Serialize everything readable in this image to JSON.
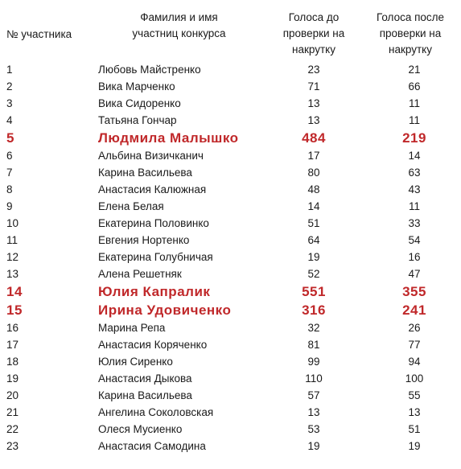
{
  "header": {
    "num_line1": "№ участника",
    "name_line1": "Фамилия и имя",
    "name_line2": "участниц конкурса",
    "before_line1": "Голоса до",
    "before_line2": "проверки на",
    "before_line3": "накрутку",
    "after_line1": "Голоса после",
    "after_line2": "проверки на",
    "after_line3": "накрутку"
  },
  "highlight_color": "#c0282a",
  "rows": [
    {
      "num": "1",
      "name": "Любовь Майстренко",
      "before": "23",
      "after": "21",
      "highlight": false
    },
    {
      "num": "2",
      "name": "Вика Марченко",
      "before": "71",
      "after": "66",
      "highlight": false
    },
    {
      "num": "3",
      "name": "Вика Сидоренко",
      "before": "13",
      "after": "11",
      "highlight": false
    },
    {
      "num": "4",
      "name": "Татьяна Гончар",
      "before": "13",
      "after": "11",
      "highlight": false
    },
    {
      "num": "5",
      "name": "Людмила Малышко",
      "before": "484",
      "after": "219",
      "highlight": true
    },
    {
      "num": "6",
      "name": "Альбина Визичканич",
      "before": "17",
      "after": "14",
      "highlight": false
    },
    {
      "num": "7",
      "name": "Карина Васильева",
      "before": "80",
      "after": "63",
      "highlight": false
    },
    {
      "num": "8",
      "name": "Анастасия Калюжная",
      "before": "48",
      "after": "43",
      "highlight": false
    },
    {
      "num": "9",
      "name": "Елена Белая",
      "before": "14",
      "after": "11",
      "highlight": false
    },
    {
      "num": "10",
      "name": "Екатерина Половинко",
      "before": "51",
      "after": "33",
      "highlight": false
    },
    {
      "num": "11",
      "name": "Евгения Нортенко",
      "before": "64",
      "after": "54",
      "highlight": false
    },
    {
      "num": "12",
      "name": "Екатерина Голубничая",
      "before": "19",
      "after": "16",
      "highlight": false
    },
    {
      "num": "13",
      "name": "Алена Решетняк",
      "before": "52",
      "after": "47",
      "highlight": false
    },
    {
      "num": "14",
      "name": "Юлия Капралик",
      "before": "551",
      "after": "355",
      "highlight": true
    },
    {
      "num": "15",
      "name": "Ирина Удовиченко",
      "before": "316",
      "after": "241",
      "highlight": true
    },
    {
      "num": "16",
      "name": "Марина Репа",
      "before": "32",
      "after": "26",
      "highlight": false
    },
    {
      "num": "17",
      "name": "Анастасия Коряченко",
      "before": "81",
      "after": "77",
      "highlight": false
    },
    {
      "num": "18",
      "name": "Юлия Сиренко",
      "before": "99",
      "after": "94",
      "highlight": false
    },
    {
      "num": "19",
      "name": "Анастасия Дыкова",
      "before": "110",
      "after": "100",
      "highlight": false
    },
    {
      "num": "20",
      "name": "Карина Васильева",
      "before": "57",
      "after": "55",
      "highlight": false
    },
    {
      "num": "21",
      "name": "Ангелина Соколовская",
      "before": "13",
      "after": "13",
      "highlight": false
    },
    {
      "num": "22",
      "name": "Олеся Мусиенко",
      "before": "53",
      "after": "51",
      "highlight": false
    },
    {
      "num": "23",
      "name": "Анастасия Самодина",
      "before": "19",
      "after": "19",
      "highlight": false
    }
  ]
}
